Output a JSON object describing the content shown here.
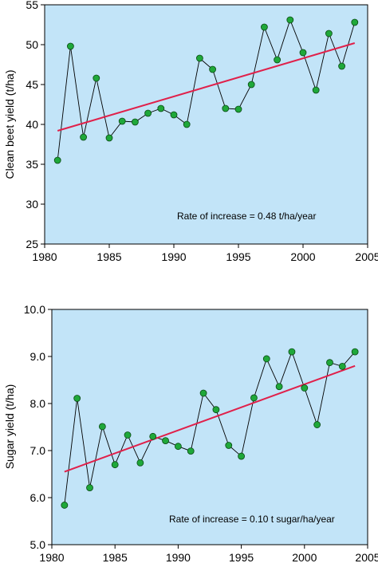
{
  "chart_data": [
    {
      "type": "line",
      "ylabel": "Clean beet yield (t/ha)",
      "xlabel": "",
      "xlim": [
        1980,
        2005
      ],
      "ylim": [
        25,
        55
      ],
      "x_ticks": [
        1980,
        1985,
        1990,
        1995,
        2000,
        2005
      ],
      "y_ticks": [
        25,
        30,
        35,
        40,
        45,
        50,
        55
      ],
      "y_tick_labels": [
        "25",
        "30",
        "35",
        "40",
        "45",
        "50",
        "55"
      ],
      "annotation": "Rate of increase = 0.48 t/ha/year",
      "series": [
        {
          "x": [
            1981,
            1982,
            1983,
            1984,
            1985,
            1986,
            1987,
            1988,
            1989,
            1990,
            1991,
            1992,
            1993,
            1994,
            1995,
            1996,
            1997,
            1998,
            1999,
            2000,
            2001,
            2002,
            2003,
            2004
          ],
          "values": [
            35.5,
            49.8,
            38.4,
            45.8,
            38.3,
            40.4,
            40.3,
            41.4,
            42.0,
            41.2,
            40.0,
            48.3,
            46.9,
            42.0,
            41.9,
            45.0,
            52.2,
            48.1,
            53.1,
            49.0,
            44.3,
            51.4,
            47.3,
            52.8
          ]
        }
      ],
      "trend": {
        "x": [
          1981,
          2004
        ],
        "values": [
          39.2,
          50.2
        ]
      },
      "colors": {
        "background": "#c2e4f8",
        "marker": "#1fa83a",
        "trend": "#e0204a",
        "line": "#000000"
      }
    },
    {
      "type": "line",
      "ylabel": "Sugar yield (t/ha)",
      "xlabel": "",
      "xlim": [
        1980,
        2005
      ],
      "ylim": [
        5.0,
        10.0
      ],
      "x_ticks": [
        1980,
        1985,
        1990,
        1995,
        2000,
        2005
      ],
      "y_ticks": [
        5,
        6,
        7,
        8,
        9,
        10
      ],
      "y_tick_labels": [
        "5.0",
        "6.0",
        "7.0",
        "8.0",
        "9.0",
        "10.0"
      ],
      "annotation": "Rate of increase = 0.10 t sugar/ha/year",
      "series": [
        {
          "x": [
            1981,
            1982,
            1983,
            1984,
            1985,
            1986,
            1987,
            1988,
            1989,
            1990,
            1991,
            1992,
            1993,
            1994,
            1995,
            1996,
            1997,
            1998,
            1999,
            2000,
            2001,
            2002,
            2003,
            2004
          ],
          "values": [
            5.84,
            8.11,
            6.21,
            7.51,
            6.7,
            7.33,
            6.74,
            7.3,
            7.21,
            7.09,
            6.99,
            8.22,
            7.87,
            7.11,
            6.88,
            8.12,
            8.95,
            8.36,
            9.1,
            8.33,
            7.55,
            8.87,
            8.79,
            9.1
          ]
        }
      ],
      "trend": {
        "x": [
          1981,
          2004
        ],
        "values": [
          6.55,
          8.8
        ]
      },
      "colors": {
        "background": "#c2e4f8",
        "marker": "#1fa83a",
        "trend": "#e0204a",
        "line": "#000000"
      }
    }
  ]
}
